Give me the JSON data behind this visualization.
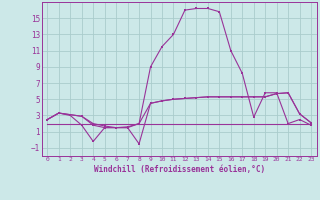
{
  "xlabel": "Windchill (Refroidissement éolien,°C)",
  "background_color": "#cce8e8",
  "grid_color": "#aacccc",
  "line_color": "#993399",
  "xlim": [
    -0.5,
    23.5
  ],
  "ylim": [
    -2.0,
    17.0
  ],
  "x_ticks": [
    0,
    1,
    2,
    3,
    4,
    5,
    6,
    7,
    8,
    9,
    10,
    11,
    12,
    13,
    14,
    15,
    16,
    17,
    18,
    19,
    20,
    21,
    22,
    23
  ],
  "y_ticks": [
    -1,
    1,
    3,
    5,
    7,
    9,
    11,
    13,
    15
  ],
  "series_main": [
    2.5,
    3.3,
    3.1,
    2.9,
    1.8,
    1.5,
    1.5,
    1.5,
    2.0,
    9.0,
    11.5,
    13.0,
    16.0,
    16.2,
    16.2,
    15.8,
    11.0,
    8.2,
    2.8,
    5.8,
    5.8,
    2.0,
    2.5,
    1.8
  ],
  "series_upper": [
    2.5,
    3.3,
    3.1,
    2.9,
    2.0,
    1.7,
    1.5,
    1.6,
    2.0,
    4.5,
    4.8,
    5.0,
    5.1,
    5.2,
    5.3,
    5.3,
    5.3,
    5.3,
    5.3,
    5.3,
    5.7,
    5.8,
    3.2,
    2.1
  ],
  "series_flat": [
    2.0,
    2.0,
    2.0,
    2.0,
    2.0,
    2.0,
    2.0,
    2.0,
    2.0,
    2.0,
    2.0,
    2.0,
    2.0,
    2.0,
    2.0,
    2.0,
    2.0,
    2.0,
    2.0,
    2.0,
    2.0,
    2.0,
    2.0,
    2.0
  ],
  "series_lower": [
    2.5,
    3.3,
    3.0,
    1.8,
    -0.2,
    1.5,
    1.5,
    1.5,
    -0.5,
    4.5,
    4.8,
    5.0,
    5.1,
    5.2,
    5.3,
    5.3,
    5.3,
    5.3,
    5.3,
    5.3,
    5.7,
    5.8,
    3.2,
    2.1
  ]
}
